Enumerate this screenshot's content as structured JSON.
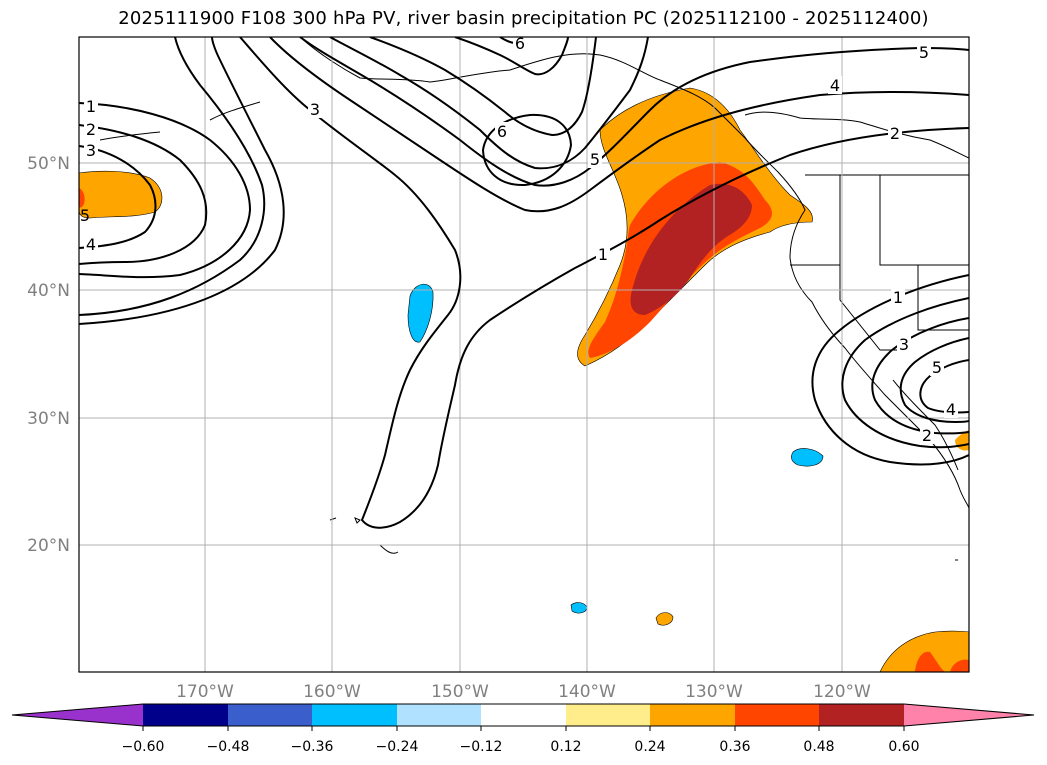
{
  "title": "2025111900 F108 300 hPa PV, river basin precipitation PC (2025112100 - 2025112400)",
  "lat_ticks": [
    "50°N",
    "40°N",
    "30°N",
    "20°N"
  ],
  "lon_ticks": [
    "170°W",
    "160°W",
    "150°W",
    "140°W",
    "130°W",
    "120°W"
  ],
  "pv_contour_labels": [
    "1",
    "2",
    "3",
    "4",
    "5",
    "6",
    "6",
    "3",
    "5",
    "1",
    "4",
    "2",
    "5",
    "1",
    "3",
    "5",
    "4",
    "2"
  ],
  "colorbar": {
    "ticks": [
      "−0.60",
      "−0.48",
      "−0.36",
      "−0.24",
      "−0.12",
      "0.12",
      "0.24",
      "0.36",
      "0.48",
      "0.60"
    ],
    "colors": [
      "#9932cc",
      "#00008b",
      "#3a5fcd",
      "#00bfff",
      "#b0e2ff",
      "#ffffff",
      "#ffec8b",
      "#ffa500",
      "#ff4500",
      "#b22222",
      "#ff82ab"
    ]
  }
}
